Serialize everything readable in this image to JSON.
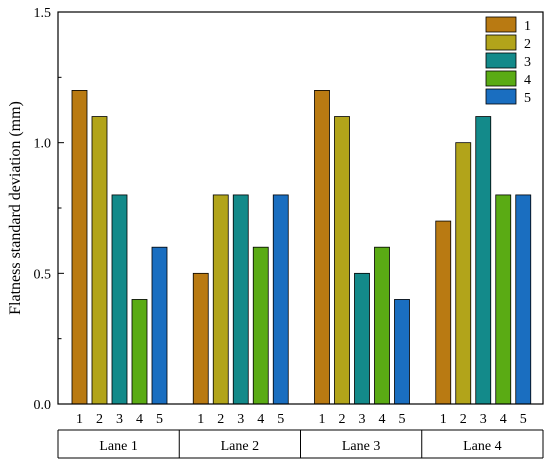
{
  "chart_data": {
    "type": "bar",
    "title": "",
    "ylabel": "Flatness standard deviation (mm)",
    "xlabel": "",
    "ylim": [
      0,
      1.5
    ],
    "y_ticks": [
      "0.0",
      "0.5",
      "1.0",
      "1.5"
    ],
    "groups": [
      "Lane 1",
      "Lane 2",
      "Lane 3",
      "Lane 4"
    ],
    "bar_labels": [
      "1",
      "2",
      "3",
      "4",
      "5"
    ],
    "series": [
      {
        "name": "1",
        "color": "#b97a12",
        "values": [
          1.2,
          0.5,
          1.2,
          0.7
        ]
      },
      {
        "name": "2",
        "color": "#b2a41a",
        "values": [
          1.1,
          0.8,
          1.1,
          1.0
        ]
      },
      {
        "name": "3",
        "color": "#138a8a",
        "values": [
          0.8,
          0.8,
          0.5,
          1.1
        ]
      },
      {
        "name": "4",
        "color": "#5aab14",
        "values": [
          0.4,
          0.6,
          0.6,
          0.8
        ]
      },
      {
        "name": "5",
        "color": "#1a6ec0",
        "values": [
          0.6,
          0.8,
          0.4,
          0.8
        ]
      }
    ],
    "legend_position": "top-right",
    "grid": false
  }
}
